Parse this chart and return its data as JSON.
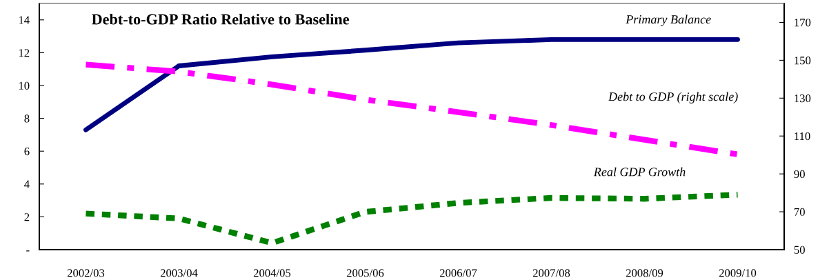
{
  "chart_data": {
    "type": "line",
    "title": "Debt-to-GDP Ratio Relative to Baseline",
    "categories": [
      "2002/03",
      "2003/04",
      "2004/05",
      "2005/06",
      "2006/07",
      "2007/08",
      "2008/09",
      "2009/10"
    ],
    "series": [
      {
        "name": "Primary Balance",
        "color": "#000080",
        "line_style": "solid",
        "values": [
          7.3,
          11.2,
          11.75,
          12.15,
          12.6,
          12.8,
          12.8,
          12.8
        ]
      },
      {
        "name": "Debt to GDP (right scale)",
        "color": "#ff00ff",
        "line_style": "dashed",
        "axis": "y2",
        "values": [
          147.7,
          144,
          137.2,
          129.2,
          122.6,
          115.8,
          108,
          100.3
        ]
      },
      {
        "name": "Real GDP Growth",
        "color": "#008000",
        "line_style": "dotted",
        "values": [
          2.2,
          1.9,
          0.4,
          2.3,
          2.85,
          3.15,
          3.1,
          3.35
        ]
      }
    ],
    "ylim": [
      0,
      15
    ],
    "yticks": [
      {
        "value": 0,
        "label": "-"
      },
      2,
      4,
      6,
      8,
      10,
      12,
      14
    ],
    "y2lim": [
      50,
      180
    ],
    "y2ticks": [
      50,
      70,
      90,
      110,
      130,
      150,
      170
    ],
    "marker": "none",
    "grid": false,
    "legend": false
  }
}
